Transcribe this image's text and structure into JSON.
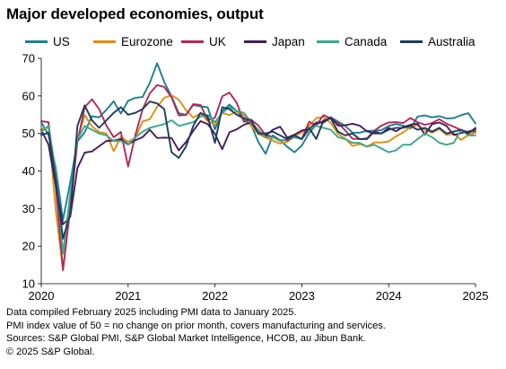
{
  "title": "Major developed economies, output",
  "chart_data": {
    "type": "line",
    "title": "Major developed economies, output",
    "xlabel": "",
    "ylabel": "",
    "x_ticks": [
      "2020",
      "2021",
      "2022",
      "2023",
      "2024",
      "2025"
    ],
    "y_ticks": [
      10,
      20,
      30,
      40,
      50,
      60,
      70
    ],
    "ylim": [
      10,
      70
    ],
    "x_range": [
      "2020-01",
      "2025-01"
    ],
    "grid": false,
    "legend_position": "top",
    "x": [
      "2020-01",
      "2020-02",
      "2020-03",
      "2020-04",
      "2020-05",
      "2020-06",
      "2020-07",
      "2020-08",
      "2020-09",
      "2020-10",
      "2020-11",
      "2020-12",
      "2021-01",
      "2021-02",
      "2021-03",
      "2021-04",
      "2021-05",
      "2021-06",
      "2021-07",
      "2021-08",
      "2021-09",
      "2021-10",
      "2021-11",
      "2021-12",
      "2022-01",
      "2022-02",
      "2022-03",
      "2022-04",
      "2022-05",
      "2022-06",
      "2022-07",
      "2022-08",
      "2022-09",
      "2022-10",
      "2022-11",
      "2022-12",
      "2023-01",
      "2023-02",
      "2023-03",
      "2023-04",
      "2023-05",
      "2023-06",
      "2023-07",
      "2023-08",
      "2023-09",
      "2023-10",
      "2023-11",
      "2023-12",
      "2024-01",
      "2024-02",
      "2024-03",
      "2024-04",
      "2024-05",
      "2024-06",
      "2024-07",
      "2024-08",
      "2024-09",
      "2024-10",
      "2024-11",
      "2024-12",
      "2025-01"
    ],
    "series": [
      {
        "name": "US",
        "color": "#1b7f93",
        "values": [
          53.0,
          49.6,
          40.9,
          27.0,
          37.0,
          47.9,
          50.3,
          54.6,
          54.3,
          56.3,
          58.6,
          55.3,
          58.7,
          59.5,
          59.7,
          63.5,
          68.7,
          63.7,
          59.9,
          55.4,
          55.0,
          57.6,
          57.2,
          57.0,
          51.1,
          55.9,
          57.7,
          56.0,
          53.6,
          52.3,
          47.7,
          44.6,
          49.5,
          48.2,
          46.4,
          45.0,
          46.8,
          50.1,
          52.3,
          53.4,
          54.3,
          53.2,
          52.0,
          50.2,
          50.2,
          50.7,
          50.7,
          50.9,
          52.0,
          52.5,
          52.1,
          51.3,
          54.5,
          54.8,
          54.3,
          54.6,
          54.0,
          54.1,
          54.9,
          55.4,
          52.7
        ]
      },
      {
        "name": "Eurozone",
        "color": "#e18e0e",
        "values": [
          51.3,
          51.6,
          29.7,
          13.6,
          30.5,
          48.5,
          54.9,
          51.9,
          50.4,
          50.0,
          45.3,
          49.1,
          47.8,
          48.8,
          53.2,
          53.8,
          57.1,
          59.5,
          60.2,
          59.0,
          56.2,
          54.2,
          55.4,
          53.3,
          52.3,
          55.5,
          54.9,
          55.8,
          54.8,
          52.0,
          49.9,
          48.9,
          48.1,
          47.3,
          47.8,
          49.3,
          50.3,
          52.0,
          54.1,
          54.4,
          52.8,
          49.9,
          48.6,
          46.7,
          47.2,
          46.5,
          47.6,
          47.6,
          47.9,
          49.2,
          50.3,
          51.7,
          52.2,
          50.9,
          50.2,
          51.2,
          49.6,
          50.0,
          48.3,
          49.6,
          50.2
        ]
      },
      {
        "name": "UK",
        "color": "#b5275a",
        "values": [
          53.3,
          53.0,
          36.0,
          13.6,
          30.0,
          47.7,
          57.0,
          59.1,
          56.5,
          52.1,
          49.0,
          50.4,
          41.2,
          49.6,
          56.4,
          60.7,
          62.9,
          62.4,
          59.6,
          54.8,
          54.9,
          57.8,
          57.6,
          53.6,
          54.2,
          59.9,
          60.9,
          58.2,
          53.1,
          53.7,
          52.1,
          49.6,
          49.1,
          48.2,
          48.2,
          49.0,
          48.5,
          53.1,
          52.2,
          54.9,
          54.0,
          52.8,
          50.8,
          48.6,
          48.5,
          48.7,
          50.7,
          52.1,
          52.9,
          53.0,
          52.8,
          54.1,
          53.0,
          52.3,
          52.8,
          53.8,
          52.6,
          51.8,
          50.9,
          50.4,
          50.6
        ]
      },
      {
        "name": "Japan",
        "color": "#471c5e",
        "values": [
          51.0,
          47.0,
          36.2,
          25.8,
          27.8,
          40.8,
          44.9,
          45.2,
          46.6,
          48.0,
          48.1,
          48.5,
          47.1,
          48.2,
          49.0,
          51.0,
          48.8,
          48.9,
          48.8,
          45.5,
          47.7,
          50.7,
          53.3,
          52.5,
          49.9,
          45.8,
          50.3,
          51.1,
          52.3,
          53.0,
          50.2,
          49.4,
          51.0,
          51.8,
          48.9,
          49.7,
          50.8,
          51.1,
          52.9,
          52.9,
          54.3,
          52.1,
          52.2,
          52.6,
          52.1,
          50.6,
          50.0,
          50.0,
          51.5,
          50.6,
          51.7,
          52.3,
          52.6,
          49.7,
          52.5,
          52.9,
          52.0,
          49.6,
          50.1,
          50.5,
          51.1
        ]
      },
      {
        "name": "Canada",
        "color": "#3aa889",
        "values": [
          50.5,
          52.0,
          40.0,
          18.0,
          34.0,
          48.5,
          52.0,
          51.0,
          50.0,
          49.5,
          48.0,
          48.0,
          47.0,
          49.0,
          50.5,
          51.5,
          52.0,
          52.5,
          53.5,
          52.0,
          52.5,
          53.0,
          54.5,
          55.0,
          53.0,
          55.5,
          57.0,
          56.0,
          55.5,
          53.0,
          51.0,
          49.0,
          49.0,
          48.0,
          48.5,
          49.0,
          48.5,
          51.0,
          52.0,
          51.5,
          51.0,
          49.0,
          48.5,
          47.5,
          47.5,
          46.5,
          47.0,
          46.0,
          45.0,
          45.5,
          47.0,
          47.0,
          48.5,
          50.0,
          49.0,
          47.5,
          47.0,
          47.5,
          51.0,
          49.5,
          49.5
        ]
      },
      {
        "name": "Australia",
        "color": "#1d3c5b",
        "values": [
          49.6,
          50.2,
          38.0,
          22.0,
          28.5,
          52.0,
          57.5,
          53.5,
          51.5,
          53.5,
          55.5,
          57.0,
          55.0,
          55.5,
          56.5,
          58.5,
          58.0,
          56.5,
          45.0,
          43.5,
          46.5,
          52.0,
          55.5,
          54.5,
          47.5,
          57.0,
          56.5,
          55.0,
          54.0,
          53.5,
          50.0,
          50.0,
          50.5,
          49.5,
          48.5,
          49.5,
          48.5,
          51.5,
          48.5,
          53.5,
          54.0,
          50.5,
          49.5,
          50.0,
          48.5,
          48.5,
          50.5,
          50.0,
          51.0,
          51.5,
          51.5,
          52.0,
          51.0,
          51.5,
          50.5,
          51.5,
          50.0,
          50.5,
          51.0,
          50.0,
          51.5
        ]
      }
    ]
  },
  "notes": [
    "Data compiled February 2025 including PMI data to January 2025.",
    "PMI index value of 50 = no change on prior month, covers manufacturing and services.",
    "Sources: S&P Global PMI, S&P Global Market Intelligence, HCOB, au Jibun Bank.",
    "© 2025 S&P Global."
  ]
}
